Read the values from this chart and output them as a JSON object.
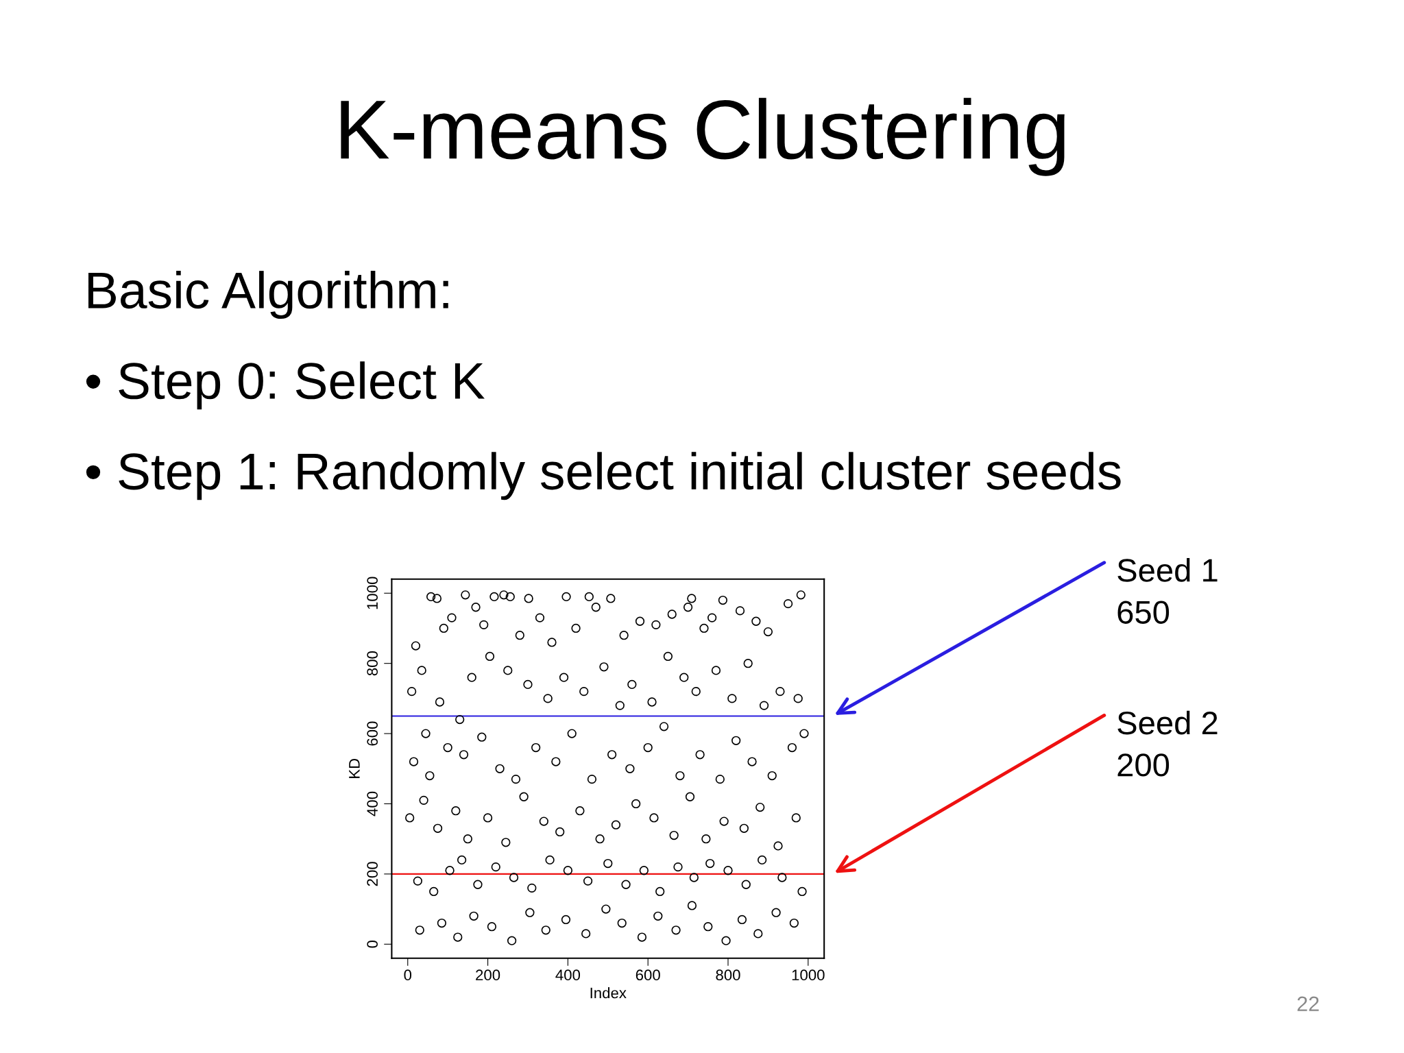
{
  "chart_data": {
    "type": "scatter",
    "title": "K-means Clustering",
    "annotations": [
      "Basic Algorithm:",
      "• Step 0: Select K",
      "• Step 1: Randomly select initial cluster seeds",
      "Seed 1\n650",
      "Seed 2\n200",
      "22"
    ],
    "xlabel": "Index",
    "ylabel": "KD",
    "marker": "circle",
    "grid": false,
    "legend": false,
    "xlim": [
      -40,
      1040
    ],
    "ylim": [
      -40,
      1040
    ],
    "xticks": [
      0,
      200,
      400,
      600,
      800,
      1000
    ],
    "yticks": [
      0,
      200,
      400,
      600,
      800,
      1000
    ],
    "ref_lines": [
      {
        "axis": "y",
        "value": 650,
        "color": "#2a1ee0"
      },
      {
        "axis": "y",
        "value": 200,
        "color": "#ee1111"
      }
    ],
    "series": [
      {
        "color": "#000000",
        "x": [
          58,
          73,
          144,
          216,
          240,
          256,
          302,
          396,
          453,
          507,
          709,
          787,
          982,
          20,
          35,
          90,
          110,
          170,
          190,
          280,
          330,
          360,
          420,
          470,
          540,
          580,
          620,
          660,
          700,
          740,
          760,
          830,
          870,
          900,
          950,
          975,
          10,
          45,
          80,
          130,
          160,
          205,
          250,
          300,
          350,
          390,
          440,
          490,
          530,
          560,
          610,
          650,
          690,
          720,
          770,
          810,
          850,
          890,
          930,
          990,
          15,
          55,
          100,
          140,
          185,
          230,
          270,
          320,
          370,
          410,
          460,
          510,
          555,
          600,
          640,
          680,
          730,
          780,
          820,
          860,
          910,
          960,
          5,
          40,
          75,
          120,
          150,
          200,
          245,
          290,
          340,
          380,
          430,
          480,
          520,
          570,
          615,
          665,
          705,
          745,
          790,
          840,
          880,
          925,
          970,
          25,
          65,
          105,
          135,
          175,
          220,
          265,
          310,
          355,
          400,
          450,
          500,
          545,
          590,
          630,
          675,
          715,
          755,
          800,
          845,
          885,
          935,
          985,
          30,
          85,
          125,
          165,
          210,
          260,
          305,
          345,
          395,
          445,
          495,
          535,
          585,
          625,
          670,
          710,
          750,
          795,
          835,
          875,
          920,
          965
        ],
        "values": [
          990,
          985,
          995,
          990,
          995,
          990,
          985,
          990,
          990,
          985,
          985,
          980,
          995,
          850,
          780,
          900,
          930,
          960,
          910,
          880,
          930,
          860,
          900,
          960,
          880,
          920,
          910,
          940,
          960,
          900,
          930,
          950,
          920,
          890,
          970,
          700,
          720,
          600,
          690,
          640,
          760,
          820,
          780,
          740,
          700,
          760,
          720,
          790,
          680,
          740,
          690,
          820,
          760,
          720,
          780,
          700,
          800,
          680,
          720,
          600,
          520,
          480,
          560,
          540,
          590,
          500,
          470,
          560,
          520,
          600,
          470,
          540,
          500,
          560,
          620,
          480,
          540,
          470,
          580,
          520,
          480,
          560,
          360,
          410,
          330,
          380,
          300,
          360,
          290,
          420,
          350,
          320,
          380,
          300,
          340,
          400,
          360,
          310,
          420,
          300,
          350,
          330,
          390,
          280,
          360,
          180,
          150,
          210,
          240,
          170,
          220,
          190,
          160,
          240,
          210,
          180,
          230,
          170,
          210,
          150,
          220,
          190,
          230,
          210,
          170,
          240,
          190,
          150,
          40,
          60,
          20,
          80,
          50,
          10,
          90,
          40,
          70,
          30,
          100,
          60,
          20,
          80,
          40,
          110,
          50,
          10,
          70,
          30,
          90,
          60
        ]
      }
    ]
  }
}
